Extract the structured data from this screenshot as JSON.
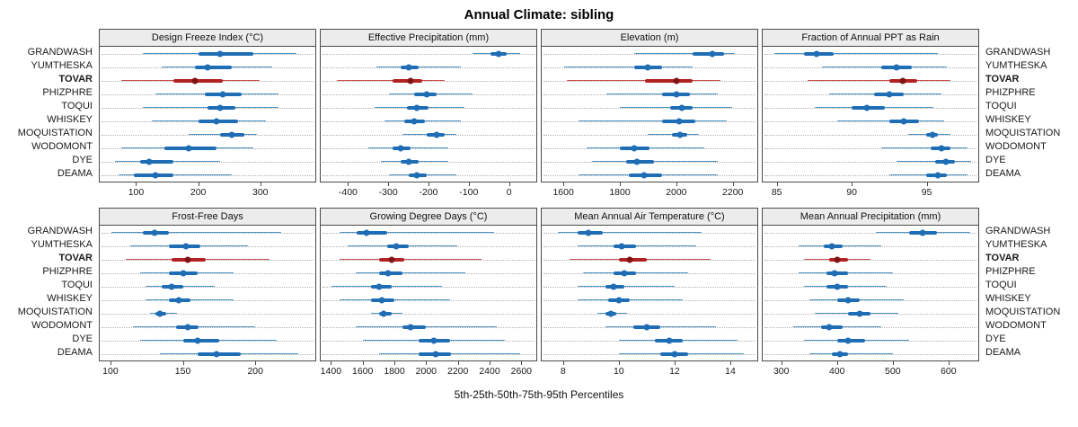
{
  "title": "Annual Climate: sibling",
  "caption": "5th-25th-50th-75th-95th Percentiles",
  "percentile_levels": [
    5,
    25,
    50,
    75,
    95
  ],
  "categories": [
    "GRANDWASH",
    "YUMTHESKA",
    "TOVAR",
    "PHIZPHRE",
    "TOQUI",
    "WHISKEY",
    "MOQUISTATION",
    "WODOMONT",
    "DYE",
    "DEAMA"
  ],
  "highlight": "TOVAR",
  "colors": {
    "normal": {
      "line": "#4d94c6",
      "bar": "#1f6db5",
      "dot": "#1f6db5"
    },
    "highlight": {
      "line": "#cc4c4c",
      "bar": "#b22222",
      "dot": "#801515"
    },
    "strip_bg": "#ececec",
    "panel_border": "#4a4a4a"
  },
  "chart_data": [
    {
      "type": "dotplot-interval",
      "title": "Design Freeze Index (°C)",
      "xlim": [
        40,
        390
      ],
      "ticks": [
        100,
        200,
        300
      ],
      "series": {
        "GRANDWASH": [
          110,
          200,
          235,
          290,
          360
        ],
        "YUMTHESKA": [
          140,
          195,
          215,
          255,
          320
        ],
        "TOVAR": [
          75,
          160,
          195,
          240,
          300
        ],
        "PHIZPHRE": [
          130,
          210,
          240,
          270,
          330
        ],
        "TOQUI": [
          110,
          215,
          235,
          260,
          330
        ],
        "WHISKEY": [
          125,
          200,
          230,
          265,
          310
        ],
        "MOQUISTATION": [
          185,
          235,
          255,
          275,
          295
        ],
        "WODOMONT": [
          75,
          145,
          185,
          230,
          290
        ],
        "DYE": [
          65,
          105,
          120,
          160,
          235
        ],
        "DEAMA": [
          70,
          95,
          130,
          160,
          255
        ]
      }
    },
    {
      "type": "dotplot-interval",
      "title": "Effective Precipitation (mm)",
      "xlim": [
        -470,
        70
      ],
      "ticks": [
        -400,
        -300,
        -200,
        -100,
        0
      ],
      "series": {
        "GRANDWASH": [
          -90,
          -45,
          -25,
          -5,
          30
        ],
        "YUMTHESKA": [
          -330,
          -270,
          -250,
          -225,
          -120
        ],
        "TOVAR": [
          -430,
          -290,
          -245,
          -215,
          -160
        ],
        "PHIZPHRE": [
          -300,
          -235,
          -205,
          -180,
          -90
        ],
        "TOQUI": [
          -335,
          -255,
          -230,
          -200,
          -110
        ],
        "WHISKEY": [
          -310,
          -260,
          -235,
          -210,
          -120
        ],
        "MOQUISTATION": [
          -265,
          -205,
          -180,
          -160,
          -130
        ],
        "WODOMONT": [
          -350,
          -290,
          -270,
          -245,
          -150
        ],
        "DYE": [
          -320,
          -270,
          -250,
          -225,
          -150
        ],
        "DEAMA": [
          -300,
          -250,
          -230,
          -205,
          -130
        ]
      }
    },
    {
      "type": "dotplot-interval",
      "title": "Elevation (m)",
      "xlim": [
        1520,
        2290
      ],
      "ticks": [
        1600,
        1800,
        2000,
        2200
      ],
      "series": {
        "GRANDWASH": [
          1850,
          2060,
          2130,
          2170,
          2210
        ],
        "YUMTHESKA": [
          1600,
          1850,
          1900,
          1950,
          2060
        ],
        "TOVAR": [
          1610,
          1890,
          2000,
          2060,
          2160
        ],
        "PHIZPHRE": [
          1750,
          1950,
          2000,
          2050,
          2150
        ],
        "TOQUI": [
          1800,
          1980,
          2020,
          2060,
          2200
        ],
        "WHISKEY": [
          1650,
          1950,
          2010,
          2070,
          2180
        ],
        "MOQUISTATION": [
          1900,
          1985,
          2015,
          2040,
          2080
        ],
        "WODOMONT": [
          1680,
          1800,
          1850,
          1905,
          2100
        ],
        "DYE": [
          1700,
          1820,
          1860,
          1920,
          2150
        ],
        "DEAMA": [
          1650,
          1830,
          1885,
          1950,
          2150
        ]
      }
    },
    {
      "type": "dotplot-interval",
      "title": "Fraction of Annual PPT as Rain",
      "xlim": [
        84,
        98.5
      ],
      "ticks": [
        85,
        90,
        95
      ],
      "series": {
        "GRANDWASH": [
          84.8,
          86.8,
          87.6,
          88.8,
          95.8
        ],
        "YUMTHESKA": [
          88.0,
          92.0,
          93.0,
          94.0,
          96.4
        ],
        "TOVAR": [
          87.0,
          92.5,
          93.4,
          94.4,
          96.6
        ],
        "PHIZPHRE": [
          88.5,
          91.5,
          92.5,
          93.5,
          96.0
        ],
        "TOQUI": [
          87.5,
          90.0,
          91.0,
          92.2,
          95.5
        ],
        "WHISKEY": [
          89.0,
          92.5,
          93.5,
          94.5,
          96.2
        ],
        "MOQUISTATION": [
          93.8,
          95.0,
          95.4,
          95.8,
          96.6
        ],
        "WODOMONT": [
          92.0,
          95.3,
          96.0,
          96.6,
          97.8
        ],
        "DYE": [
          93.0,
          95.6,
          96.3,
          96.9,
          98.0
        ],
        "DEAMA": [
          92.5,
          95.0,
          95.8,
          96.4,
          97.8
        ]
      }
    },
    {
      "type": "dotplot-interval",
      "title": "Frost-Free Days",
      "xlim": [
        92,
        242
      ],
      "ticks": [
        100,
        150,
        200
      ],
      "series": {
        "GRANDWASH": [
          100,
          122,
          130,
          140,
          218
        ],
        "YUMTHESKA": [
          113,
          140,
          152,
          162,
          195
        ],
        "TOVAR": [
          110,
          142,
          153,
          166,
          210
        ],
        "PHIZPHRE": [
          120,
          140,
          150,
          160,
          185
        ],
        "TOQUI": [
          124,
          135,
          142,
          150,
          172
        ],
        "WHISKEY": [
          124,
          140,
          147,
          155,
          185
        ],
        "MOQUISTATION": [
          127,
          131,
          134,
          138,
          146
        ],
        "WODOMONT": [
          115,
          145,
          153,
          161,
          200
        ],
        "DYE": [
          120,
          150,
          160,
          175,
          215
        ],
        "DEAMA": [
          134,
          160,
          173,
          190,
          230
        ]
      }
    },
    {
      "type": "dotplot-interval",
      "title": "Growing Degree Days (°C)",
      "xlim": [
        1330,
        2700
      ],
      "ticks": [
        1400,
        1600,
        1800,
        2000,
        2200,
        2400,
        2600
      ],
      "series": {
        "GRANDWASH": [
          1450,
          1560,
          1620,
          1750,
          2430
        ],
        "YUMTHESKA": [
          1500,
          1750,
          1810,
          1890,
          2200
        ],
        "TOVAR": [
          1450,
          1700,
          1780,
          1860,
          2350
        ],
        "PHIZPHRE": [
          1550,
          1700,
          1760,
          1850,
          2250
        ],
        "TOQUI": [
          1400,
          1650,
          1700,
          1780,
          2100
        ],
        "WHISKEY": [
          1450,
          1650,
          1720,
          1800,
          2150
        ],
        "MOQUISTATION": [
          1650,
          1700,
          1730,
          1780,
          1850
        ],
        "WODOMONT": [
          1550,
          1850,
          1900,
          2000,
          2450
        ],
        "DYE": [
          1600,
          1950,
          2050,
          2150,
          2500
        ],
        "DEAMA": [
          1700,
          1950,
          2060,
          2160,
          2600
        ]
      }
    },
    {
      "type": "dotplot-interval",
      "title": "Mean Annual Air Temperature (°C)",
      "xlim": [
        7.2,
        15
      ],
      "ticks": [
        8,
        10,
        12,
        14
      ],
      "series": {
        "GRANDWASH": [
          7.8,
          8.5,
          8.9,
          9.4,
          13.0
        ],
        "YUMTHESKA": [
          8.5,
          9.8,
          10.1,
          10.6,
          12.8
        ],
        "TOVAR": [
          8.2,
          10.0,
          10.4,
          11.0,
          13.3
        ],
        "PHIZPHRE": [
          8.7,
          9.8,
          10.2,
          10.6,
          12.5
        ],
        "TOQUI": [
          8.5,
          9.5,
          9.8,
          10.2,
          12.0
        ],
        "WHISKEY": [
          8.5,
          9.6,
          10.0,
          10.4,
          12.3
        ],
        "MOQUISTATION": [
          9.2,
          9.5,
          9.7,
          9.9,
          10.3
        ],
        "WODOMONT": [
          9.5,
          10.5,
          11.0,
          11.5,
          13.5
        ],
        "DYE": [
          10.0,
          11.3,
          11.8,
          12.3,
          14.3
        ],
        "DEAMA": [
          10.0,
          11.5,
          12.0,
          12.5,
          14.5
        ]
      }
    },
    {
      "type": "dotplot-interval",
      "title": "Mean Annual Precipitation (mm)",
      "xlim": [
        265,
        655
      ],
      "ticks": [
        300,
        400,
        500,
        600
      ],
      "series": {
        "GRANDWASH": [
          470,
          530,
          555,
          580,
          640
        ],
        "YUMTHESKA": [
          330,
          375,
          390,
          410,
          480
        ],
        "TOVAR": [
          340,
          385,
          400,
          420,
          460
        ],
        "PHIZPHRE": [
          330,
          380,
          395,
          420,
          500
        ],
        "TOQUI": [
          340,
          380,
          400,
          420,
          490
        ],
        "WHISKEY": [
          350,
          400,
          420,
          440,
          520
        ],
        "MOQUISTATION": [
          360,
          420,
          440,
          460,
          510
        ],
        "WODOMONT": [
          320,
          370,
          385,
          410,
          480
        ],
        "DYE": [
          340,
          400,
          420,
          450,
          530
        ],
        "DEAMA": [
          350,
          390,
          405,
          420,
          500
        ]
      }
    }
  ]
}
